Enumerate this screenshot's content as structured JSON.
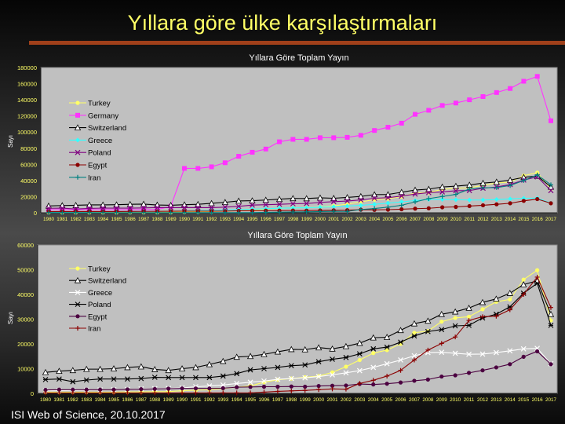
{
  "slide": {
    "title": "Yıllara göre ülke karşılaştırmaları",
    "footer": "ISI Web of Science, 20.10.2017",
    "accent_bar_color": "#a0401a"
  },
  "chart_data": [
    {
      "type": "line",
      "title": "Yıllara Göre Toplam Yayın",
      "ylabel": "Sayı",
      "xlabel": "",
      "ylim": [
        0,
        180000
      ],
      "yticks": [
        0,
        20000,
        40000,
        60000,
        80000,
        100000,
        120000,
        140000,
        160000,
        180000
      ],
      "grid": false,
      "legend": "left",
      "categories": [
        "1980",
        "1981",
        "1982",
        "1983",
        "1984",
        "1985",
        "1986",
        "1987",
        "1988",
        "1989",
        "1990",
        "1991",
        "1992",
        "1993",
        "1994",
        "1995",
        "1996",
        "1997",
        "1998",
        "1999",
        "2000",
        "2001",
        "2002",
        "2003",
        "2004",
        "2005",
        "2006",
        "2007",
        "2008",
        "2009",
        "2010",
        "2011",
        "2012",
        "2013",
        "2014",
        "2015",
        "2016",
        "2017"
      ],
      "series": [
        {
          "name": "Turkey",
          "color": "#ffff66",
          "marker": "circle",
          "values": [
            500,
            500,
            500,
            500,
            500,
            500,
            600,
            600,
            700,
            700,
            1100,
            1300,
            1500,
            2000,
            2500,
            3000,
            4500,
            5500,
            6000,
            6500,
            7000,
            8500,
            10800,
            13500,
            16300,
            17500,
            20000,
            24500,
            25200,
            29000,
            30500,
            31000,
            34000,
            37000,
            38000,
            46000,
            49800,
            29500
          ]
        },
        {
          "name": "Germany",
          "color": "#ff33ff",
          "marker": "square",
          "values": [
            4000,
            4000,
            4000,
            4000,
            4000,
            4000,
            4000,
            4000,
            4000,
            8000,
            55000,
            55000,
            57000,
            62000,
            70000,
            75000,
            79000,
            88000,
            91000,
            91000,
            93000,
            93000,
            93500,
            96000,
            102000,
            106000,
            111000,
            122000,
            127000,
            133000,
            136000,
            140000,
            144000,
            149000,
            154000,
            163000,
            169000,
            114000
          ]
        },
        {
          "name": "Switzerland",
          "color": "#000000",
          "marker": "triangle",
          "values": [
            8500,
            9000,
            9300,
            9800,
            9800,
            10000,
            10500,
            10800,
            9700,
            9300,
            10000,
            10500,
            11700,
            13000,
            14700,
            15000,
            15800,
            16800,
            17800,
            17700,
            18500,
            18000,
            19000,
            20300,
            22500,
            22700,
            25500,
            28200,
            29300,
            32000,
            33000,
            34500,
            36800,
            38200,
            40500,
            44000,
            45500,
            32000
          ]
        },
        {
          "name": "Greece",
          "color": "#33ffff",
          "marker": "diamond",
          "values": [
            1000,
            1100,
            1200,
            1300,
            1400,
            1500,
            1600,
            1800,
            1900,
            2000,
            2200,
            2700,
            3000,
            3400,
            4000,
            4500,
            5000,
            5700,
            6000,
            6300,
            6800,
            7500,
            8300,
            9200,
            10500,
            12000,
            13500,
            15200,
            16500,
            16600,
            16200,
            15800,
            15900,
            16500,
            17200,
            18000,
            18200,
            12000
          ]
        },
        {
          "name": "Poland",
          "color": "#800080",
          "marker": "x",
          "values": [
            5600,
            5800,
            4700,
            5400,
            5800,
            5800,
            5800,
            6000,
            6500,
            6400,
            6400,
            6400,
            6400,
            7000,
            8000,
            9500,
            10000,
            10500,
            11200,
            11500,
            12800,
            13800,
            14500,
            16000,
            18000,
            18700,
            20700,
            23200,
            25000,
            25800,
            27300,
            27500,
            30500,
            32000,
            35000,
            40500,
            44500,
            27500
          ]
        },
        {
          "name": "Egypt",
          "color": "#8b0000",
          "marker": "circle",
          "values": [
            1400,
            1500,
            1500,
            1500,
            1500,
            1500,
            1600,
            1700,
            1800,
            1900,
            2000,
            2000,
            2000,
            2100,
            2500,
            2600,
            2700,
            2700,
            2800,
            2700,
            3000,
            3100,
            3200,
            3800,
            3600,
            3900,
            4400,
            5100,
            5600,
            6800,
            7300,
            8300,
            9300,
            10500,
            11800,
            14800,
            17000,
            11800
          ]
        },
        {
          "name": "Iran",
          "color": "#008080",
          "marker": "plus",
          "values": [
            200,
            200,
            200,
            200,
            200,
            200,
            200,
            200,
            200,
            200,
            200,
            200,
            200,
            200,
            200,
            200,
            500,
            800,
            1000,
            1200,
            1500,
            1800,
            1700,
            4000,
            5300,
            7000,
            9300,
            13500,
            17500,
            20200,
            22800,
            29500,
            31000,
            31200,
            33800,
            40000,
            47000,
            34700
          ]
        }
      ]
    },
    {
      "type": "line",
      "title": "Yıllara Göre Toplam Yayın",
      "ylabel": "Sayı",
      "xlabel": "",
      "ylim": [
        0,
        60000
      ],
      "yticks": [
        0,
        10000,
        20000,
        30000,
        40000,
        50000,
        60000
      ],
      "grid": false,
      "legend": "left",
      "categories": [
        "1980",
        "1981",
        "1982",
        "1983",
        "1984",
        "1985",
        "1986",
        "1987",
        "1988",
        "1989",
        "1990",
        "1991",
        "1992",
        "1993",
        "1994",
        "1995",
        "1996",
        "1997",
        "1998",
        "1999",
        "2000",
        "2001",
        "2002",
        "2003",
        "2004",
        "2005",
        "2006",
        "2007",
        "2008",
        "2009",
        "2010",
        "2011",
        "2012",
        "2013",
        "2014",
        "2015",
        "2016",
        "2017"
      ],
      "series": [
        {
          "name": "Turkey",
          "color": "#ffff66",
          "marker": "circle",
          "values": [
            500,
            500,
            500,
            500,
            500,
            500,
            600,
            600,
            700,
            700,
            1100,
            1300,
            1500,
            2000,
            2500,
            3000,
            4500,
            5500,
            6000,
            6500,
            7000,
            8500,
            10800,
            13500,
            16300,
            17500,
            20000,
            24500,
            25200,
            29000,
            30500,
            31000,
            34000,
            37000,
            38000,
            46000,
            49800,
            29500
          ]
        },
        {
          "name": "Switzerland",
          "color": "#000000",
          "marker": "triangle",
          "values": [
            8500,
            9000,
            9300,
            9800,
            9800,
            10000,
            10500,
            10800,
            9700,
            9300,
            10000,
            10500,
            11700,
            13000,
            14700,
            15000,
            15800,
            16800,
            17800,
            17700,
            18500,
            18000,
            19000,
            20300,
            22500,
            22700,
            25500,
            28200,
            29300,
            32000,
            33000,
            34500,
            36800,
            38200,
            40500,
            44000,
            45500,
            32000
          ]
        },
        {
          "name": "Greece",
          "color": "#ffffff",
          "marker": "x",
          "values": [
            1000,
            1100,
            1200,
            1300,
            1400,
            1500,
            1600,
            1800,
            1900,
            2000,
            2200,
            2700,
            3000,
            3400,
            4000,
            4500,
            5000,
            5700,
            6000,
            6300,
            6800,
            7500,
            8300,
            9200,
            10500,
            12000,
            13500,
            15200,
            16500,
            16600,
            16200,
            15800,
            15900,
            16500,
            17200,
            18000,
            18200,
            12000
          ]
        },
        {
          "name": "Poland",
          "color": "#000000",
          "marker": "star",
          "values": [
            5600,
            5800,
            4700,
            5400,
            5800,
            5800,
            5800,
            6000,
            6500,
            6400,
            6400,
            6400,
            6400,
            7000,
            8000,
            9500,
            10000,
            10500,
            11200,
            11500,
            12800,
            13800,
            14500,
            16000,
            18000,
            18700,
            20700,
            23200,
            25000,
            25800,
            27300,
            27500,
            30500,
            32000,
            35000,
            40500,
            44500,
            27500
          ]
        },
        {
          "name": "Egypt",
          "color": "#4b0040",
          "marker": "circle",
          "values": [
            1400,
            1500,
            1500,
            1500,
            1500,
            1500,
            1600,
            1700,
            1800,
            1900,
            2000,
            2000,
            2000,
            2100,
            2500,
            2600,
            2700,
            2700,
            2800,
            2700,
            3000,
            3100,
            3200,
            3800,
            3600,
            3900,
            4400,
            5100,
            5600,
            6800,
            7300,
            8300,
            9300,
            10500,
            11800,
            14800,
            17000,
            11800
          ]
        },
        {
          "name": "Iran",
          "color": "#8b0000",
          "marker": "plus",
          "values": [
            200,
            200,
            200,
            200,
            200,
            200,
            200,
            200,
            200,
            200,
            200,
            200,
            200,
            200,
            200,
            200,
            500,
            800,
            1000,
            1200,
            1500,
            1800,
            1700,
            4000,
            5300,
            7000,
            9300,
            13500,
            17500,
            20200,
            22800,
            29500,
            31000,
            31200,
            33800,
            40000,
            47000,
            34700
          ]
        }
      ]
    }
  ]
}
